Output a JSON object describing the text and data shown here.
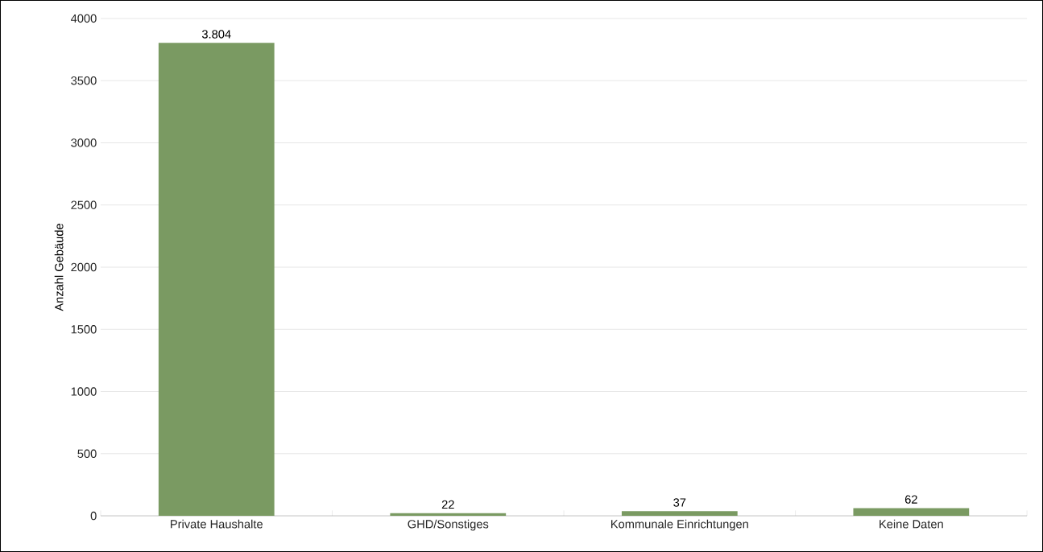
{
  "chart_data": {
    "type": "bar",
    "ylabel": "Anzahl Gebäude",
    "categories": [
      "Private Haushalte",
      "GHD/Sonstiges",
      "Kommunale Einrichtungen",
      "Keine Daten"
    ],
    "values": [
      3804,
      22,
      37,
      62
    ],
    "value_labels": [
      "3.804",
      "22",
      "37",
      "62"
    ],
    "color": "#7a9a62",
    "ylim": [
      0,
      4000
    ],
    "yticks": [
      0,
      500,
      1000,
      1500,
      2000,
      2500,
      3000,
      3500,
      4000
    ],
    "grid": "y"
  }
}
